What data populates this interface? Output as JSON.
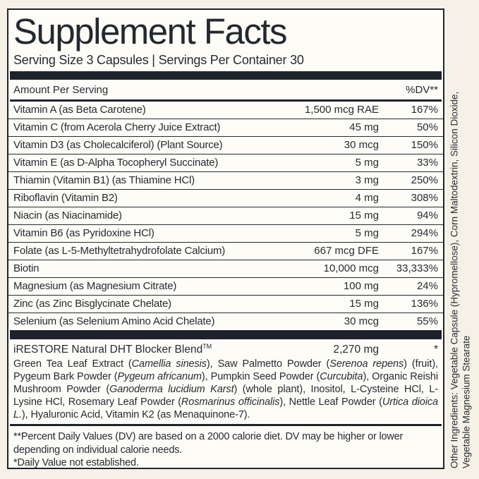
{
  "label": {
    "title": "Supplement Facts",
    "serving_line": "Serving Size 3 Capsules | Servings Per Container 30",
    "header": {
      "amount_per_serving": "Amount Per Serving",
      "dv": "%DV**"
    },
    "rows": [
      {
        "name": "Vitamin A (as Beta Carotene)",
        "amount": "1,500 mcg RAE",
        "dv": "167%"
      },
      {
        "name": "Vitamin C (from Acerola Cherry Juice Extract)",
        "amount": "45 mg",
        "dv": "50%"
      },
      {
        "name": "Vitamin D3 (as Cholecalciferol) (Plant Source)",
        "amount": "30 mcg",
        "dv": "150%"
      },
      {
        "name": "Vitamin E (as D-Alpha Tocopheryl Succinate)",
        "amount": "5 mg",
        "dv": "33%"
      },
      {
        "name": "Thiamin (Vitamin B1) (as Thiamine HCl)",
        "amount": "3 mg",
        "dv": "250%"
      },
      {
        "name": "Riboflavin (Vitamin B2)",
        "amount": "4 mg",
        "dv": "308%"
      },
      {
        "name": "Niacin (as Niacinamide)",
        "amount": "15 mg",
        "dv": "94%"
      },
      {
        "name": "Vitamin B6 (as Pyridoxine HCl)",
        "amount": "5 mg",
        "dv": "294%"
      },
      {
        "name": "Folate (as L-5-Methyltetrahydrofolate Calcium)",
        "amount": "667 mcg DFE",
        "dv": "167%"
      },
      {
        "name": "Biotin",
        "amount": "10,000 mcg",
        "dv": "33,333%"
      },
      {
        "name": "Magnesium (as Magnesium Citrate)",
        "amount": "100 mg",
        "dv": "24%"
      },
      {
        "name": "Zinc (as Zinc Bisglycinate Chelate)",
        "amount": "15 mg",
        "dv": "136%"
      },
      {
        "name": "Selenium (as Selenium Amino Acid Chelate)",
        "amount": "30 mcg",
        "dv": "55%"
      }
    ],
    "blend": {
      "name": "iRESTORE Natural DHT Blocker Blend",
      "trademark": "TM",
      "amount": "2,270 mg",
      "dv": "*",
      "description_segments": [
        {
          "text": "Green Tea Leaf Extract (",
          "italic": false
        },
        {
          "text": "Camellia sinesis",
          "italic": true
        },
        {
          "text": "), Saw Palmetto Powder (",
          "italic": false
        },
        {
          "text": "Serenoa repens",
          "italic": true
        },
        {
          "text": ") (fruit), Pygeum Bark Powder (",
          "italic": false
        },
        {
          "text": "Pygeum africanum",
          "italic": true
        },
        {
          "text": "), Pumpkin Seed Powder (",
          "italic": false
        },
        {
          "text": "Curcubita",
          "italic": true
        },
        {
          "text": "), Organic Reishi Mushroom Powder (",
          "italic": false
        },
        {
          "text": "Ganoderma lucidium Karst",
          "italic": true
        },
        {
          "text": ") (whole plant), Inositol, L-Cysteine HCl, L-Lysine HCl, Rosemary Leaf Powder (",
          "italic": false
        },
        {
          "text": "Rosmarinus officinalis",
          "italic": true
        },
        {
          "text": "), Nettle Leaf Powder (",
          "italic": false
        },
        {
          "text": "Urtica dioica L.",
          "italic": true
        },
        {
          "text": "), Hyaluronic Acid, Vitamin K2 (as Menaquinone-7).",
          "italic": false
        }
      ]
    },
    "footnotes": [
      "**Percent Daily Values (DV) are based on a 2000 calorie diet. DV may be higher or lower depending on individual calorie needs.",
      "*Daily Value not established."
    ],
    "side_text": {
      "line1": "Other Ingredients: Vegetable Capsule (Hypromellose), Corn Maltodextrin, Silicon Dioxide,",
      "line2": "Vegetable Magnesium Stearate"
    },
    "colors": {
      "ink": "#262b32",
      "bar": "#1d222b",
      "page_background": "#f6f1e7",
      "panel_background": "#fdfcf7"
    }
  }
}
